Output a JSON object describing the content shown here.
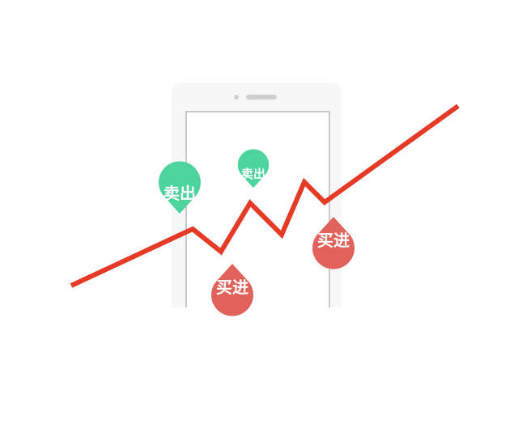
{
  "markers": [
    {
      "label": "卖出",
      "kind": "sell"
    },
    {
      "label": "卖出",
      "kind": "sell"
    },
    {
      "label": "买进",
      "kind": "buy"
    },
    {
      "label": "买进",
      "kind": "buy"
    }
  ],
  "colors": {
    "trend_line": "#e53a25",
    "sell": "#4cd49c",
    "buy": "#e0625a",
    "phone_body": "#f7f7f7",
    "phone_screen_border": "#9a9a9a",
    "phone_detail": "#cfcfcf"
  },
  "icons": [
    "smartphone-icon",
    "trend-line-icon",
    "location-pin-icon"
  ]
}
